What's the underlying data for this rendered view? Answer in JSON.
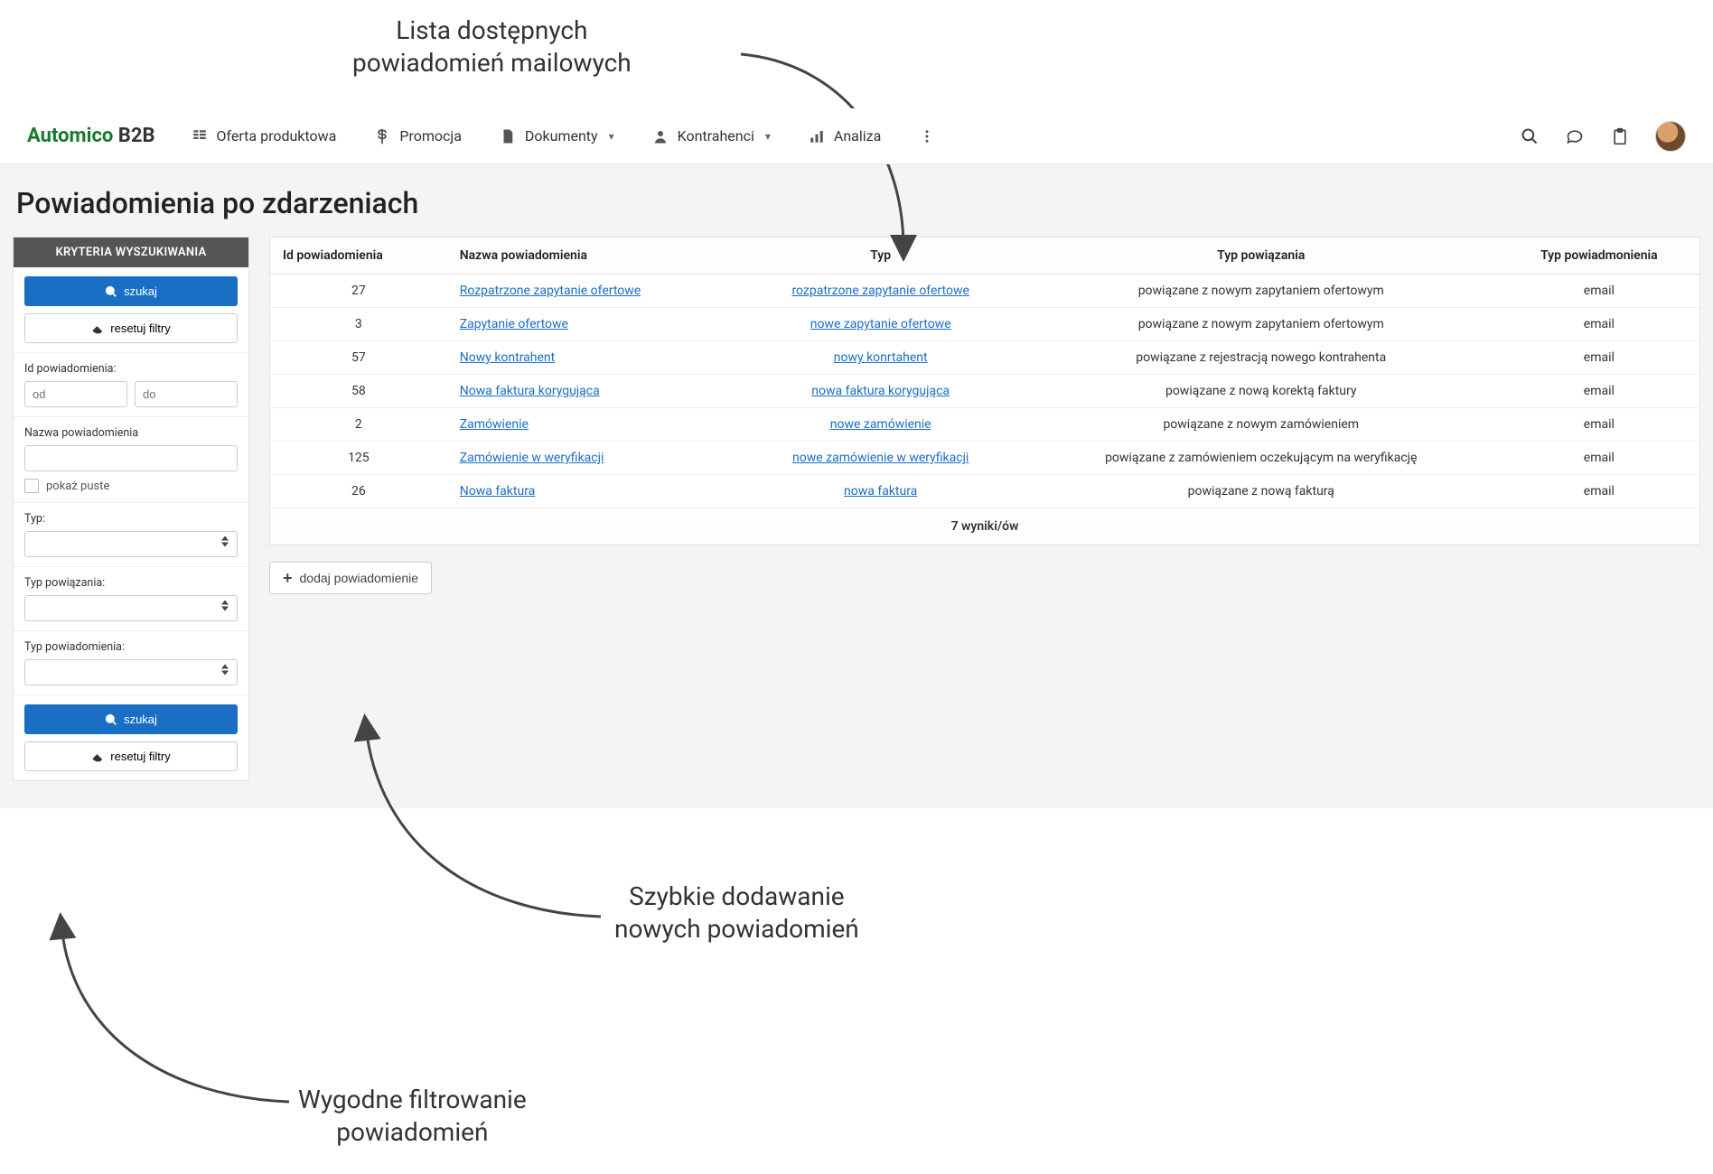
{
  "logo": {
    "brand": "Automico",
    "suffix": " B2B"
  },
  "nav": {
    "items": [
      {
        "label": "Oferta produktowa"
      },
      {
        "label": "Promocja"
      },
      {
        "label": "Dokumenty",
        "dropdown": true
      },
      {
        "label": "Kontrahenci",
        "dropdown": true
      },
      {
        "label": "Analiza"
      }
    ]
  },
  "annotations": {
    "top": "Lista dostępnych\npowiadomień mailowych",
    "mid": "Szybkie dodawanie\nnowych powiadomień",
    "bottom": "Wygodne filtrowanie\npowiadomień"
  },
  "page_title": "Powiadomienia po zdarzeniach",
  "filter": {
    "header": "KRYTERIA WYSZUKIWANIA",
    "search_btn": "szukaj",
    "reset_btn": "resetuj filtry",
    "id_label": "Id powiadomienia:",
    "id_from_ph": "od",
    "id_to_ph": "do",
    "name_label": "Nazwa powiadomienia",
    "show_empty": "pokaż puste",
    "type_label": "Typ:",
    "rel_label": "Typ powiązania:",
    "notif_type_label": "Typ powiadomienia:"
  },
  "table": {
    "columns": [
      "Id powiadomienia",
      "Nazwa powiadomienia",
      "Typ",
      "Typ powiązania",
      "Typ powiadmonienia"
    ],
    "rows": [
      {
        "id": "27",
        "name": "Rozpatrzone zapytanie ofertowe",
        "type": "rozpatrzone zapytanie ofertowe",
        "rel": "powiązane z nowym zapytaniem ofertowym",
        "ntype": "email"
      },
      {
        "id": "3",
        "name": "Zapytanie ofertowe",
        "type": "nowe zapytanie ofertowe",
        "rel": "powiązane z nowym zapytaniem ofertowym",
        "ntype": "email"
      },
      {
        "id": "57",
        "name": "Nowy kontrahent",
        "type": "nowy konrtahent",
        "rel": "powiązane z rejestracją nowego kontrahenta",
        "ntype": "email"
      },
      {
        "id": "58",
        "name": "Nowa faktura korygująca",
        "type": "nowa faktura korygująca",
        "rel": "powiązane z nową korektą faktury",
        "ntype": "email"
      },
      {
        "id": "2",
        "name": "Zamówienie",
        "type": "nowe zamówienie",
        "rel": "powiązane z nowym zamówieniem",
        "ntype": "email"
      },
      {
        "id": "125",
        "name": "Zamówienie w weryfikacji",
        "type": "nowe zamówienie w weryfikacji",
        "rel": "powiązane z zamówieniem oczekującym na weryfikację",
        "ntype": "email"
      },
      {
        "id": "26",
        "name": "Nowa faktura",
        "type": "nowa faktura",
        "rel": "powiązane z nową fakturą",
        "ntype": "email"
      }
    ],
    "footer": "7 wyniki/ów"
  },
  "add_btn": "dodaj powiadomienie",
  "colors": {
    "primary": "#1a6fc4",
    "logo_green": "#1b7a2f",
    "page_bg": "#f4f4f4",
    "border": "#e2e2e2"
  }
}
